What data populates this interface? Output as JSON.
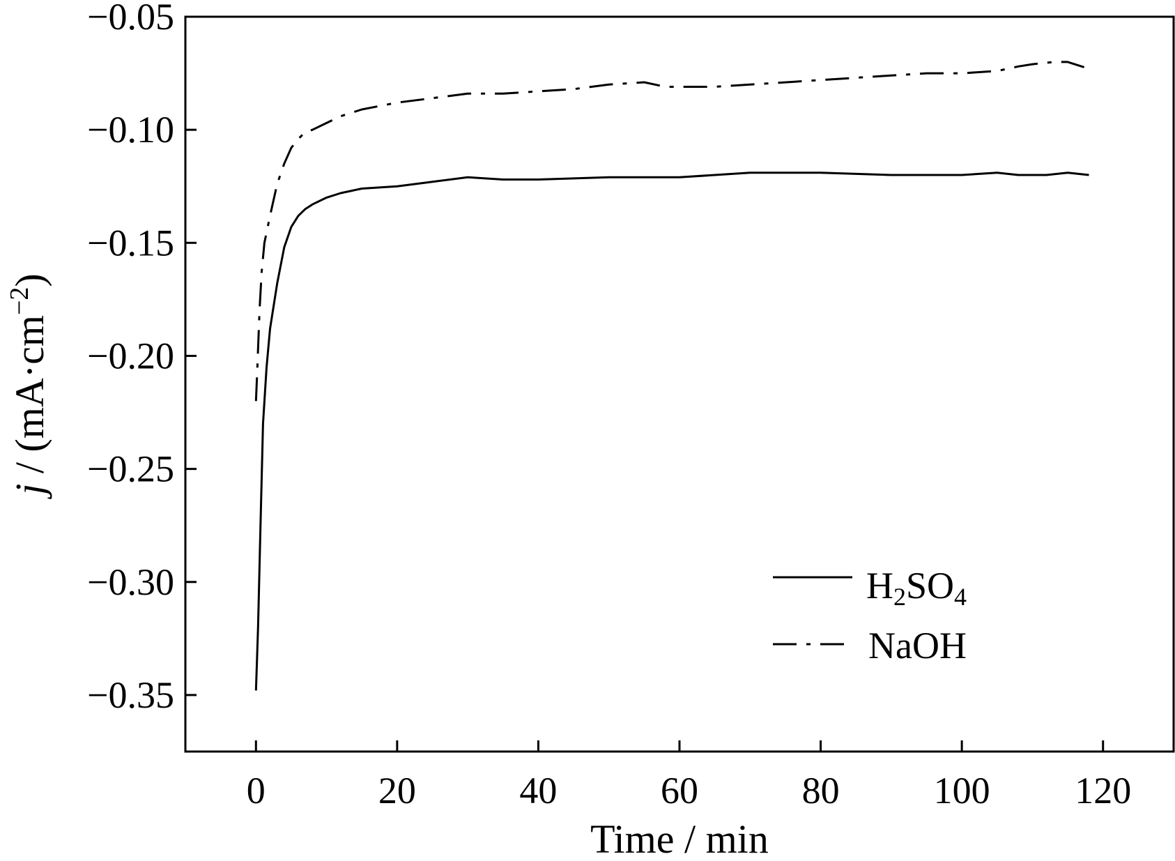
{
  "chart_data": {
    "type": "line",
    "xlabel": "Time / min",
    "ylabel_parts": [
      "j",
      " / (mA·cm",
      "−2",
      ")"
    ],
    "xlim": [
      -10,
      130
    ],
    "ylim": [
      -0.375,
      -0.05
    ],
    "xticks": [
      0,
      20,
      40,
      60,
      80,
      100,
      120
    ],
    "xtick_labels": [
      "0",
      "20",
      "40",
      "60",
      "80",
      "100",
      "120"
    ],
    "yticks": [
      -0.05,
      -0.1,
      -0.15,
      -0.2,
      -0.25,
      -0.3,
      -0.35
    ],
    "ytick_labels": [
      "−0.05",
      "−0.10",
      "−0.15",
      "−0.20",
      "−0.25",
      "−0.30",
      "−0.35"
    ],
    "grid": false,
    "legend_position": "lower-right",
    "series": [
      {
        "name": "H₂SO₄",
        "name_parts": [
          "H",
          "2",
          "SO",
          "4"
        ],
        "style": "solid",
        "color": "#000000",
        "x": [
          0,
          0.3,
          0.6,
          1,
          1.5,
          2,
          3,
          4,
          5,
          6,
          7,
          8,
          10,
          12,
          15,
          20,
          25,
          30,
          35,
          40,
          50,
          60,
          65,
          70,
          80,
          90,
          100,
          105,
          108,
          110,
          112,
          115,
          118
        ],
        "y": [
          -0.348,
          -0.32,
          -0.28,
          -0.23,
          -0.205,
          -0.188,
          -0.168,
          -0.152,
          -0.143,
          -0.138,
          -0.135,
          -0.133,
          -0.13,
          -0.128,
          -0.126,
          -0.125,
          -0.123,
          -0.121,
          -0.122,
          -0.122,
          -0.121,
          -0.121,
          -0.12,
          -0.119,
          -0.119,
          -0.12,
          -0.12,
          -0.119,
          -0.12,
          -0.12,
          -0.12,
          -0.119,
          -0.12
        ]
      },
      {
        "name": "NaOH",
        "style": "dashdot",
        "color": "#000000",
        "x": [
          0,
          0.2,
          0.5,
          0.8,
          1.2,
          2,
          3,
          4,
          5,
          6,
          7,
          8,
          10,
          12,
          15,
          20,
          25,
          30,
          35,
          40,
          45,
          50,
          55,
          58,
          60,
          65,
          70,
          80,
          90,
          95,
          100,
          105,
          108,
          110,
          113,
          115,
          118
        ],
        "y": [
          -0.22,
          -0.205,
          -0.18,
          -0.163,
          -0.15,
          -0.138,
          -0.124,
          -0.115,
          -0.108,
          -0.104,
          -0.101,
          -0.1,
          -0.097,
          -0.094,
          -0.091,
          -0.088,
          -0.086,
          -0.084,
          -0.084,
          -0.083,
          -0.082,
          -0.08,
          -0.079,
          -0.081,
          -0.081,
          -0.081,
          -0.08,
          -0.078,
          -0.076,
          -0.075,
          -0.075,
          -0.074,
          -0.072,
          -0.071,
          -0.07,
          -0.07,
          -0.073
        ]
      }
    ]
  }
}
